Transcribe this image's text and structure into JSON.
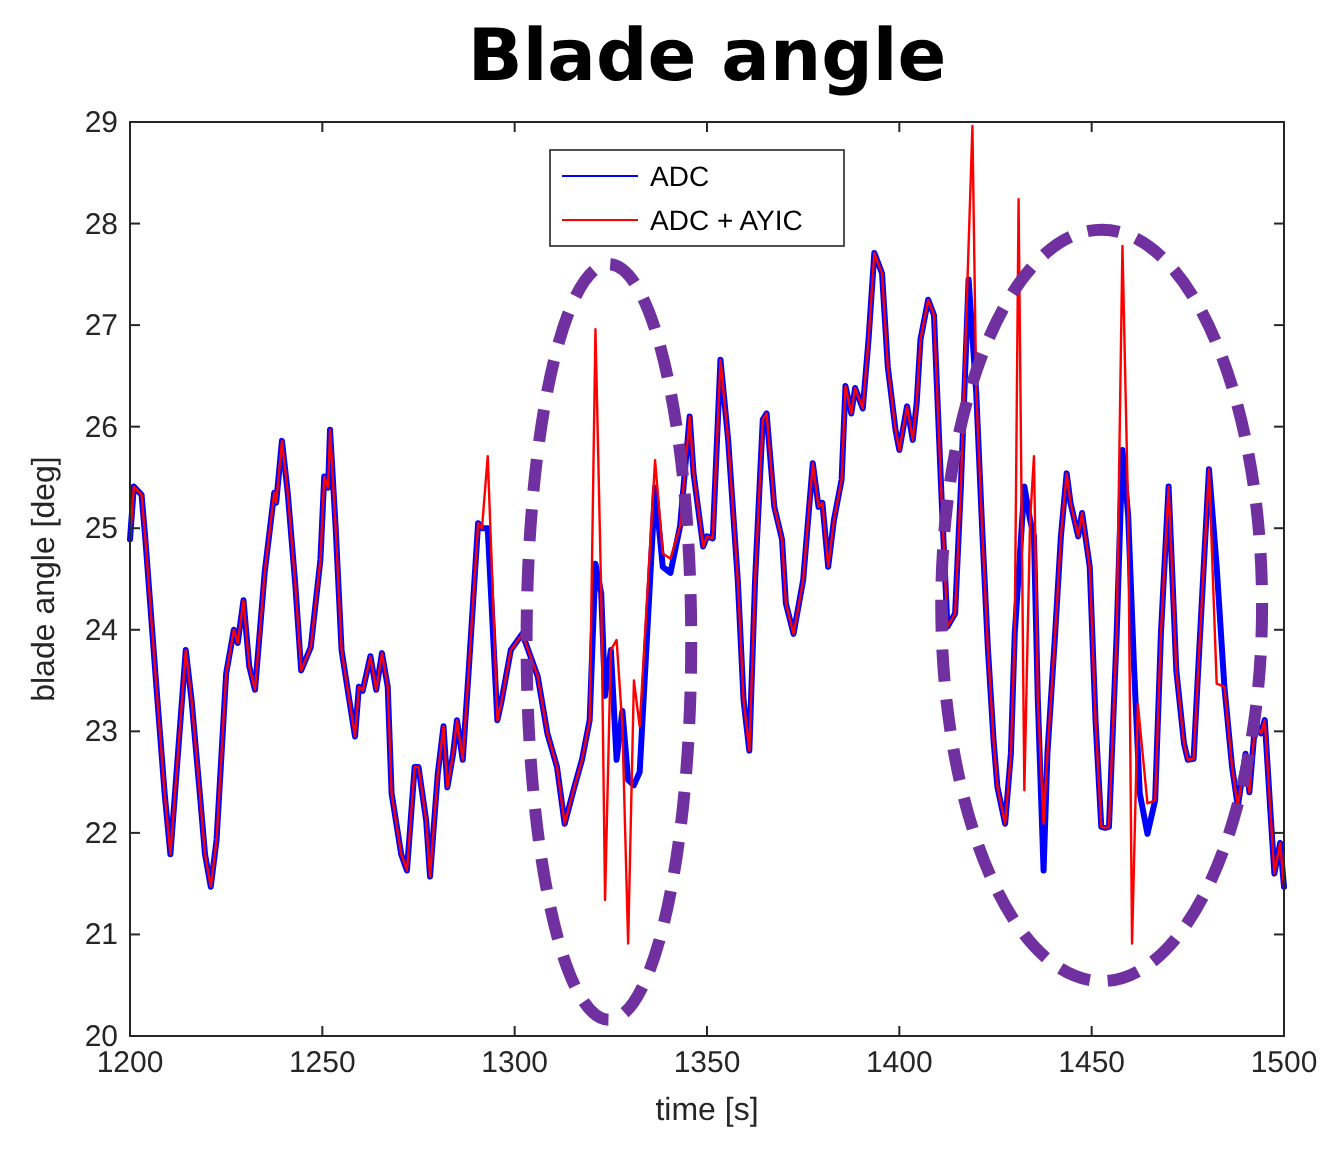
{
  "chart_data": {
    "type": "line",
    "title": "Blade angle",
    "xlabel": "time [s]",
    "ylabel": "blade angle [deg]",
    "xlim": [
      1200,
      1500
    ],
    "xticks": [
      1200,
      1250,
      1300,
      1350,
      1400,
      1450,
      1500
    ],
    "ylim": [
      20,
      29
    ],
    "yticks": [
      20,
      21,
      22,
      23,
      24,
      25,
      26,
      27,
      28,
      29
    ],
    "grid": false,
    "legend": "top",
    "line_style": "solid",
    "marker": "none",
    "series": [
      {
        "name": "ADC",
        "color": "#0000ff",
        "x": [
          1200,
          1201,
          1203,
          1204,
          1207,
          1209,
          1210.5,
          1214.5,
          1216,
          1218,
          1219.5,
          1221,
          1222.5,
          1225,
          1227,
          1228,
          1229.5,
          1231,
          1232.5,
          1235,
          1237.5,
          1238,
          1239.5,
          1241,
          1243,
          1244.5,
          1247,
          1249.5,
          1250.5,
          1251.5,
          1252,
          1253.5,
          1255,
          1257,
          1258.5,
          1259.5,
          1260.5,
          1262.5,
          1264,
          1265.5,
          1267,
          1268,
          1270.5,
          1272,
          1274,
          1275,
          1277,
          1278,
          1280,
          1281.5,
          1282.5,
          1284,
          1285,
          1286.5,
          1288,
          1290.5,
          1291.5,
          1293,
          1295.5,
          1296.5,
          1299,
          1302,
          1306,
          1308.5,
          1311,
          1313,
          1315.5,
          1317.5,
          1319.5,
          1321,
          1322.5,
          1323.5,
          1325,
          1326.5,
          1328,
          1329.5,
          1331,
          1332.5,
          1336.5,
          1338.5,
          1340.5,
          1343,
          1345.5,
          1346.5,
          1349,
          1350,
          1351.5,
          1353.5,
          1355.5,
          1358,
          1359.5,
          1361,
          1362.5,
          1364.5,
          1365.5,
          1367.5,
          1369.5,
          1370.5,
          1372.5,
          1375,
          1377.5,
          1379,
          1380,
          1381.5,
          1383,
          1385,
          1386,
          1387.5,
          1388.5,
          1390.5,
          1392,
          1393.5,
          1395.5,
          1397,
          1399,
          1400,
          1402,
          1403.5,
          1404.5,
          1405.5,
          1407.5,
          1409,
          1411,
          1412.5,
          1414.5,
          1416,
          1418,
          1420,
          1421.5,
          1423,
          1424.5,
          1425.5,
          1427.5,
          1429,
          1430,
          1432.5,
          1434,
          1435,
          1436,
          1437.5,
          1438.5,
          1440.5,
          1442,
          1443.5,
          1444.5,
          1446.5,
          1447.5,
          1449.5,
          1451,
          1452.5,
          1453.5,
          1454.5,
          1456.5,
          1458,
          1459.5,
          1461,
          1462.5,
          1464.5,
          1466.5,
          1468,
          1470,
          1472,
          1474,
          1475,
          1476.5,
          1478,
          1480.5,
          1482.5,
          1484.5,
          1486.5,
          1488,
          1490,
          1491,
          1492.5,
          1494,
          1495,
          1496.5,
          1497.5,
          1499,
          1500
        ],
        "values": [
          24.89,
          25.41,
          25.33,
          24.89,
          23.37,
          22.39,
          21.79,
          23.8,
          23.31,
          22.45,
          21.79,
          21.47,
          21.93,
          23.57,
          24,
          23.87,
          24.29,
          23.64,
          23.41,
          24.56,
          25.35,
          25.25,
          25.86,
          25.35,
          24.43,
          23.6,
          23.83,
          24.69,
          25.51,
          25.4,
          25.97,
          24.98,
          23.8,
          23.31,
          22.95,
          23.44,
          23.4,
          23.74,
          23.41,
          23.77,
          23.44,
          22.39,
          21.79,
          21.63,
          22.65,
          22.65,
          22.12,
          21.57,
          22.58,
          23.05,
          22.45,
          22.78,
          23.11,
          22.72,
          23.57,
          25.05,
          25,
          25,
          23.11,
          23.28,
          23.8,
          23.96,
          23.54,
          22.98,
          22.65,
          22.09,
          22.45,
          22.72,
          23.11,
          24.65,
          24.36,
          23.35,
          23.8,
          22.72,
          23.2,
          22.52,
          22.47,
          22.6,
          25.4,
          24.62,
          24.56,
          25.02,
          26.1,
          25.54,
          24.82,
          24.92,
          24.9,
          26.66,
          25.87,
          24.49,
          23.31,
          22.81,
          24.49,
          26.07,
          26.13,
          25.21,
          24.89,
          24.26,
          23.96,
          24.49,
          25.64,
          25.21,
          25.25,
          24.62,
          25.08,
          25.48,
          26.4,
          26.13,
          26.38,
          26.18,
          26.86,
          27.71,
          27.51,
          26.59,
          25.97,
          25.77,
          26.2,
          25.87,
          26.23,
          26.86,
          27.25,
          27.1,
          25.28,
          24.03,
          24.16,
          25.41,
          27.45,
          26.33,
          25.02,
          23.83,
          22.91,
          22.45,
          22.09,
          22.78,
          23.96,
          25.41,
          25.08,
          24.92,
          23.31,
          21.63,
          22.78,
          23.96,
          24.92,
          25.54,
          25.25,
          24.92,
          25.15,
          24.62,
          23.11,
          22.06,
          22.05,
          22.06,
          23.96,
          25.77,
          25.12,
          23.64,
          22.39,
          21.99,
          22.32,
          23.96,
          25.41,
          23.6,
          22.88,
          22.72,
          22.73,
          23.83,
          25.58,
          24.62,
          23.44,
          22.65,
          22.26,
          22.78,
          22.4,
          23.08,
          22.98,
          23.11,
          22.19,
          21.6,
          21.9,
          21.47
        ]
      },
      {
        "name": "ADC + AYIC",
        "color": "#ff0000",
        "x": [
          1200,
          1201,
          1203,
          1204,
          1207,
          1209,
          1210.5,
          1214.5,
          1216,
          1218,
          1219.5,
          1221,
          1222.5,
          1225,
          1227,
          1228,
          1229.5,
          1231,
          1232.5,
          1235,
          1237.5,
          1238,
          1239.5,
          1241,
          1243,
          1244.5,
          1247,
          1249.5,
          1250.5,
          1251.5,
          1252,
          1253.5,
          1255,
          1257,
          1258.5,
          1259.5,
          1260.5,
          1262.5,
          1264,
          1265.5,
          1267,
          1268,
          1270.5,
          1272,
          1274,
          1275,
          1277,
          1278,
          1280,
          1281.5,
          1282.5,
          1284,
          1285,
          1286.5,
          1288,
          1290.5,
          1291.5,
          1293,
          1295.5,
          1296.5,
          1299,
          1302,
          1306,
          1308.5,
          1311,
          1313,
          1315.5,
          1317.5,
          1319.5,
          1321,
          1322.5,
          1323.5,
          1325,
          1326.5,
          1328,
          1329.5,
          1331,
          1332.5,
          1336.5,
          1338.5,
          1340.5,
          1343,
          1345.5,
          1346.5,
          1349,
          1350,
          1351.5,
          1353.5,
          1355.5,
          1358,
          1359.5,
          1361,
          1362.5,
          1364.5,
          1365.5,
          1367.5,
          1369.5,
          1370.5,
          1372.5,
          1375,
          1377.5,
          1379,
          1380,
          1381.5,
          1383,
          1385,
          1386,
          1387.5,
          1388.5,
          1390.5,
          1392,
          1393.5,
          1395.5,
          1397,
          1399,
          1400,
          1402,
          1403.5,
          1404.5,
          1405.5,
          1407.5,
          1409,
          1411,
          1412.5,
          1414.5,
          1416,
          1419,
          1420,
          1421.5,
          1423,
          1424.5,
          1425.5,
          1427.5,
          1429,
          1430,
          1431,
          1432.5,
          1434,
          1435,
          1436,
          1437.5,
          1438.5,
          1440.5,
          1442,
          1443.5,
          1444.5,
          1446.5,
          1447.5,
          1449.5,
          1451,
          1452.5,
          1453.5,
          1454.5,
          1456.5,
          1458,
          1459.5,
          1460.5,
          1462,
          1464.5,
          1466.5,
          1468,
          1470,
          1472,
          1474,
          1475,
          1476.5,
          1478,
          1480.5,
          1482.5,
          1484.5,
          1486.5,
          1488,
          1490,
          1491,
          1492.5,
          1494,
          1495,
          1496.5,
          1497.5,
          1499,
          1500
        ],
        "values": [
          24.89,
          25.41,
          25.33,
          24.89,
          23.37,
          22.39,
          21.79,
          23.8,
          23.31,
          22.45,
          21.79,
          21.47,
          21.93,
          23.57,
          24,
          23.87,
          24.29,
          23.64,
          23.41,
          24.56,
          25.35,
          25.25,
          25.86,
          25.35,
          24.43,
          23.6,
          23.83,
          24.69,
          25.51,
          25.4,
          25.97,
          24.98,
          23.8,
          23.31,
          22.95,
          23.44,
          23.4,
          23.74,
          23.41,
          23.77,
          23.44,
          22.39,
          21.79,
          21.63,
          22.65,
          22.65,
          22.12,
          21.57,
          22.58,
          23.05,
          22.45,
          22.78,
          23.11,
          22.72,
          23.57,
          25.05,
          25,
          25.71,
          23.11,
          23.28,
          23.8,
          23.96,
          23.54,
          22.98,
          22.65,
          22.09,
          22.45,
          22.72,
          23.11,
          26.96,
          24.36,
          21.34,
          23.8,
          23.9,
          23.05,
          20.91,
          23.5,
          23.05,
          25.67,
          24.75,
          24.7,
          25.02,
          26.1,
          25.54,
          24.82,
          24.92,
          24.9,
          26.66,
          25.87,
          24.49,
          23.31,
          22.81,
          24.49,
          26.07,
          26.13,
          25.21,
          24.89,
          24.26,
          23.96,
          24.49,
          25.64,
          25.21,
          25.25,
          24.62,
          25.08,
          25.48,
          26.4,
          26.13,
          26.38,
          26.18,
          26.86,
          27.71,
          27.51,
          26.59,
          25.97,
          25.77,
          26.2,
          25.87,
          26.23,
          26.86,
          27.25,
          27.1,
          25.28,
          24.03,
          24.16,
          25.41,
          28.96,
          26.33,
          25.02,
          23.83,
          22.91,
          22.45,
          22.09,
          22.78,
          23.96,
          28.24,
          22.42,
          25.08,
          25.71,
          23.31,
          22.09,
          22.78,
          23.96,
          24.92,
          25.54,
          25.25,
          24.92,
          25.15,
          24.62,
          23.11,
          22.06,
          22.05,
          22.06,
          23.96,
          27.78,
          25.12,
          20.91,
          23.27,
          22.29,
          22.32,
          23.96,
          25.41,
          23.6,
          22.88,
          22.72,
          22.73,
          23.83,
          25.58,
          23.47,
          23.44,
          22.65,
          22.26,
          22.78,
          22.4,
          23.08,
          22.98,
          23.11,
          22.19,
          21.6,
          21.9,
          21.47
        ]
      }
    ]
  }
}
